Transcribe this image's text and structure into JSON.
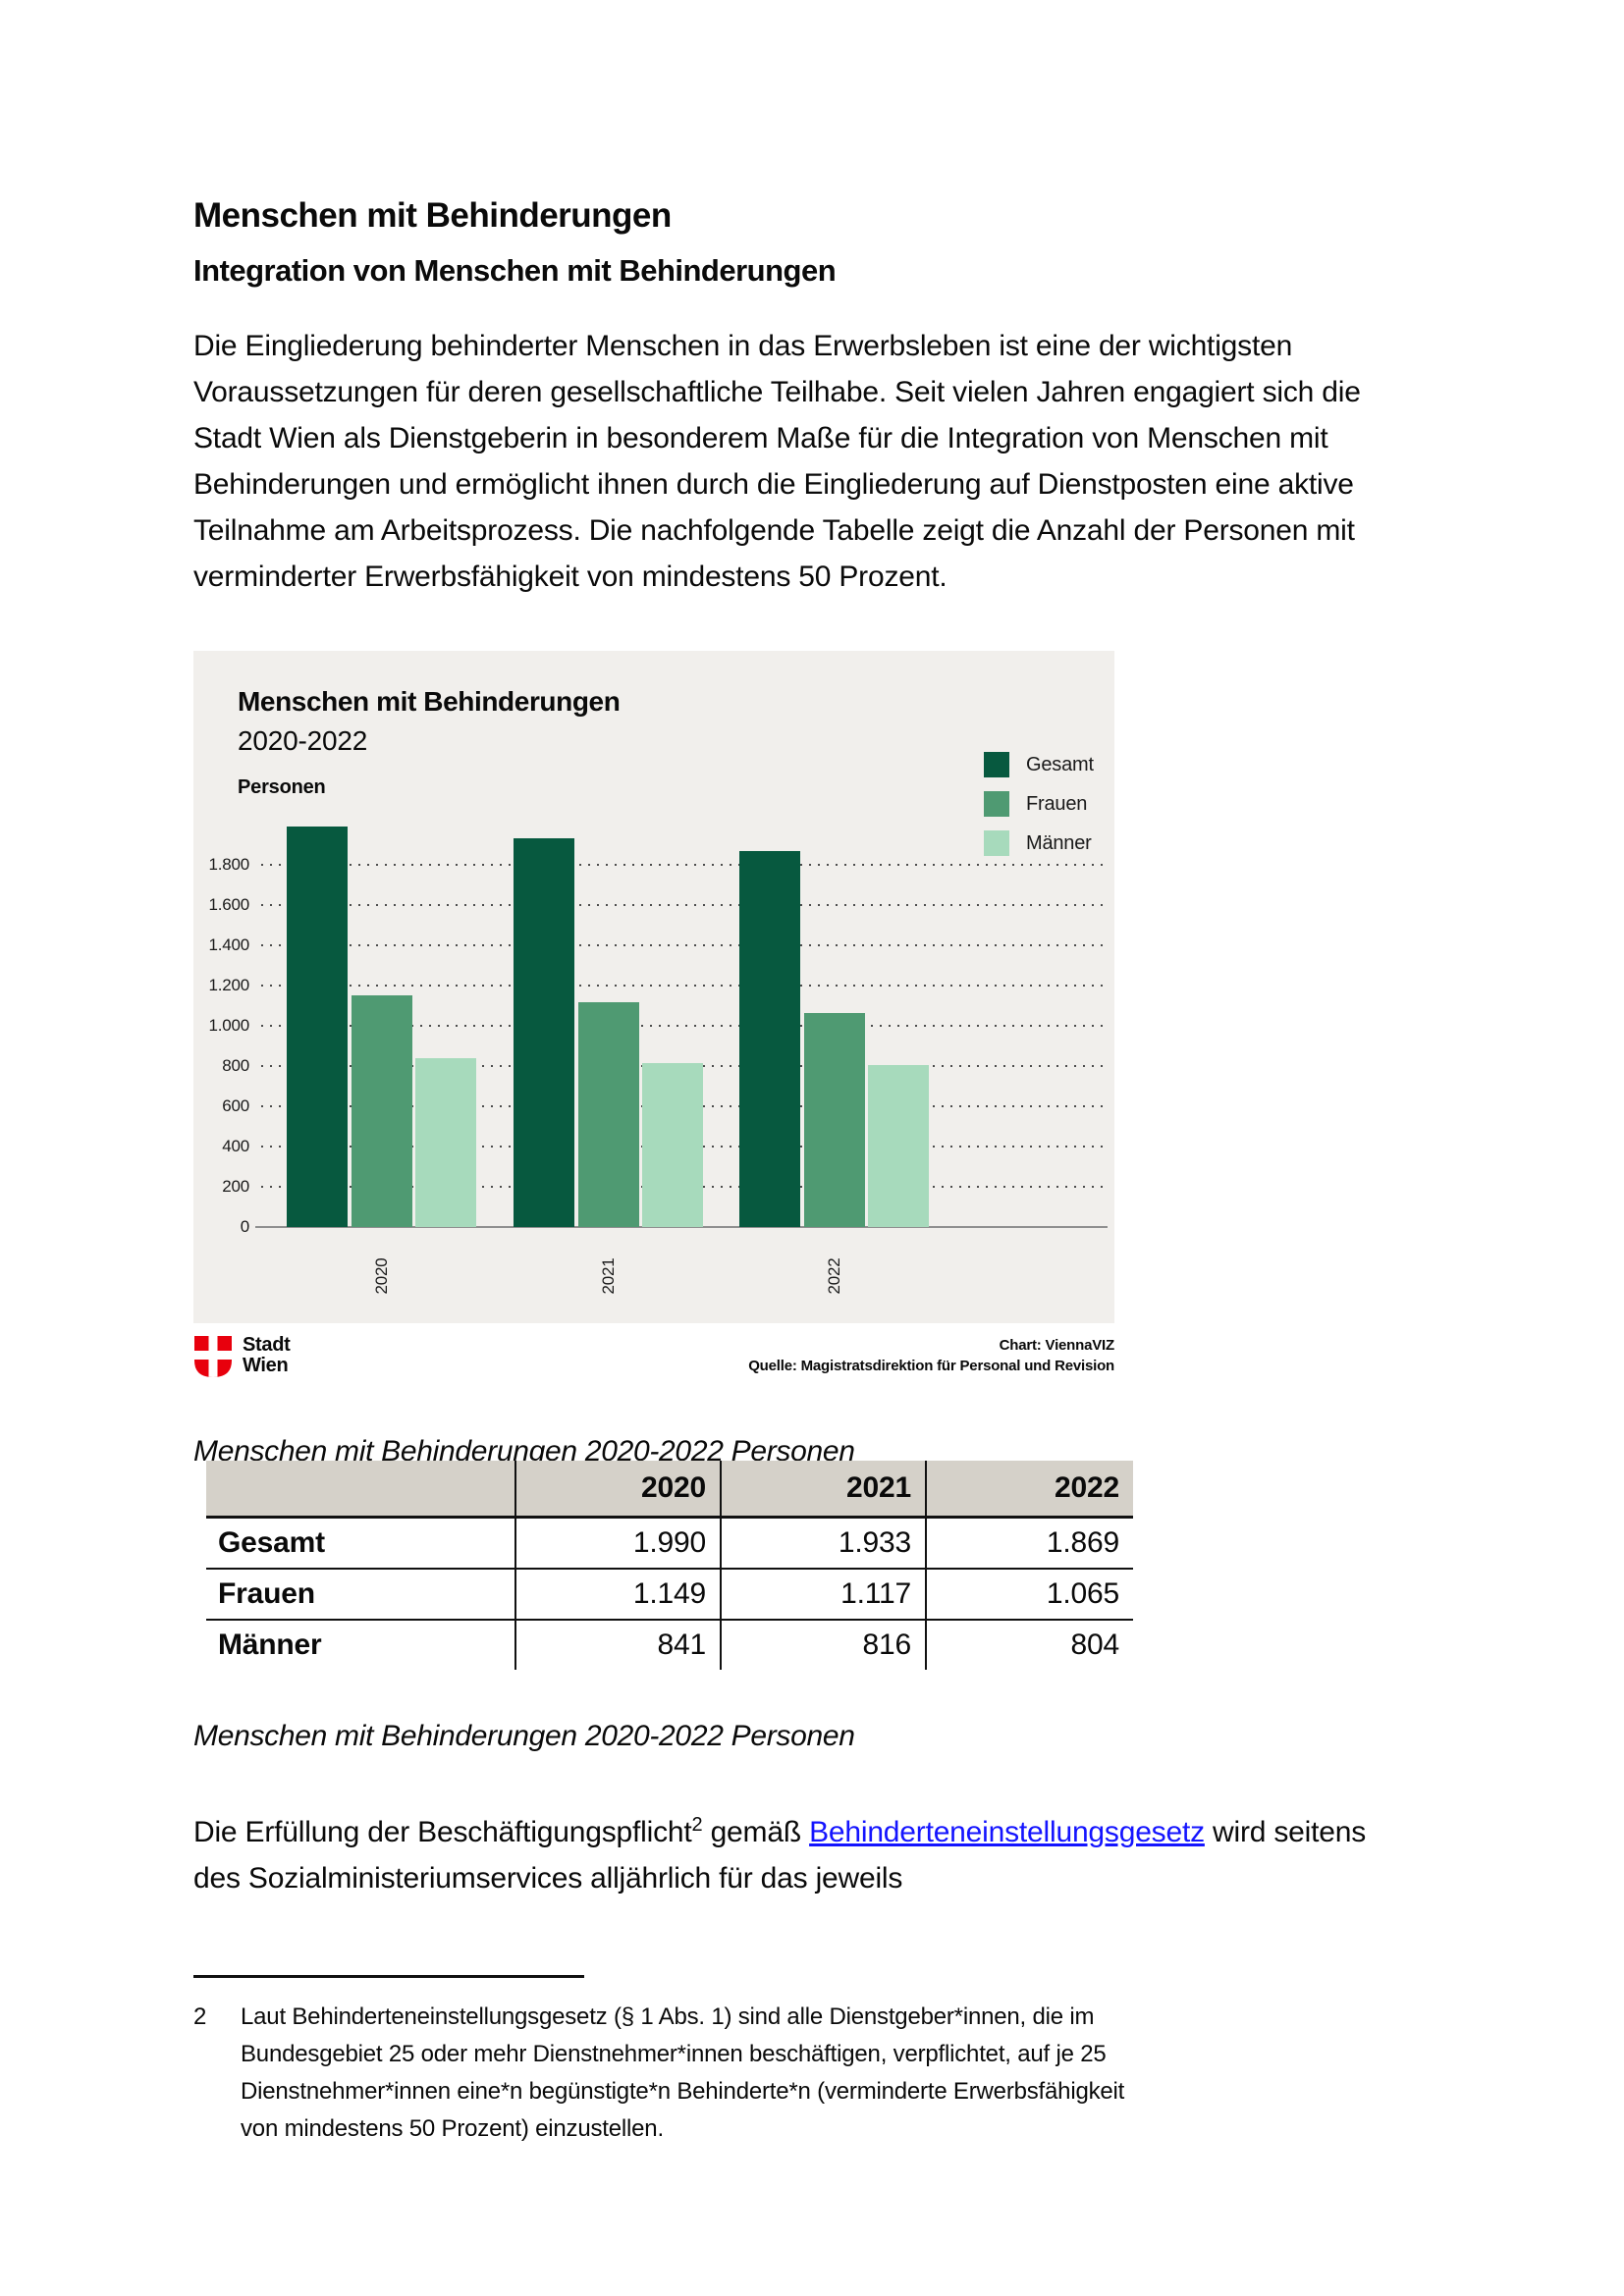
{
  "colors": {
    "chart_bg": "#f1efec",
    "table_header_bg": "#d5d1c9",
    "link_blue": "#1414ff",
    "brand_red": "#e8000d",
    "gesamt_green": "#07593f",
    "frauen_green": "#4f9a72",
    "maenner_green": "#a7dabc"
  },
  "document": {
    "title": "Menschen mit Behinderungen",
    "section_heading": "Integration von Menschen mit Behinderungen",
    "intro_paragraph": "Die Eingliederung behinderter Menschen in das Erwerbsleben ist eine der wichtigsten Voraussetzungen für deren gesellschaftliche Teilhabe. Seit vielen Jahren engagiert sich die Stadt Wien als Dienstgeberin in besonderem Maße für die Integration von Menschen mit Behinderungen und ermöglicht ihnen durch die Eingliederung auf Dienstposten eine aktive Teilnahme am Arbeitsprozess. Die nachfolgende Tabelle zeigt die Anzahl der Personen mit verminderter Erwerbsfähigkeit von mindestens 50 Prozent.",
    "caption_above_table": "Menschen mit Behinderungen 2020-2022 Personen",
    "caption_below_table": "Menschen mit Behinderungen 2020-2022 Personen",
    "paragraph2": {
      "text_before_sup": "Die Erfüllung der Beschäftigungspflicht",
      "footnote_ref": "2",
      "text_between": " gemäß ",
      "link_text": "Behinderteneinstellungsgesetz",
      "text_after": " wird seitens des Sozialministeriumservices alljährlich für das jeweils"
    },
    "footnote": {
      "marker": "2",
      "text": "Laut Behinderteneinstellungsgesetz (§ 1 Abs. 1) sind alle Dienstgeber*innen, die im Bundesgebiet 25 oder mehr Dienstnehmer*innen beschäftigen, verpflichtet, auf je 25 Dienstnehmer*innen eine*n begünstigte*n Behinderte*n (verminderte Erwerbsfähigkeit von mindestens 50 Prozent) einzustellen."
    }
  },
  "chart_data": {
    "type": "bar",
    "title": "Menschen mit Behinderungen",
    "subtitle": "2020-2022",
    "ylabel": "Personen",
    "categories": [
      "2020",
      "2021",
      "2022"
    ],
    "series": [
      {
        "name": "Gesamt",
        "color": "#07593f",
        "values": [
          1990,
          1933,
          1869
        ]
      },
      {
        "name": "Frauen",
        "color": "#4f9a72",
        "values": [
          1149,
          1117,
          1065
        ]
      },
      {
        "name": "Männer",
        "color": "#a7dabc",
        "values": [
          841,
          816,
          804
        ]
      }
    ],
    "ylim": [
      0,
      2000
    ],
    "yticks": [
      {
        "v": 0,
        "label": "0"
      },
      {
        "v": 200,
        "label": "200"
      },
      {
        "v": 400,
        "label": "400"
      },
      {
        "v": 600,
        "label": "600"
      },
      {
        "v": 800,
        "label": "800"
      },
      {
        "v": 1000,
        "label": "1.000"
      },
      {
        "v": 1200,
        "label": "1.200"
      },
      {
        "v": 1400,
        "label": "1.400"
      },
      {
        "v": 1600,
        "label": "1.600"
      },
      {
        "v": 1800,
        "label": "1.800"
      }
    ],
    "grid": "dotted-horizontal",
    "legend_position": "right",
    "brand": {
      "line1": "Stadt",
      "line2": "Wien"
    },
    "attribution": [
      "Chart: ViennaVIZ",
      "Quelle: Magistratsdirektion für Personal und Revision"
    ]
  },
  "table": {
    "columns": [
      "",
      "2020",
      "2021",
      "2022"
    ],
    "rows": [
      {
        "label": "Gesamt",
        "values": [
          "1.990",
          "1.933",
          "1.869"
        ]
      },
      {
        "label": "Frauen",
        "values": [
          "1.149",
          "1.117",
          "1.065"
        ]
      },
      {
        "label": "Männer",
        "values": [
          "841",
          "816",
          "804"
        ]
      }
    ]
  }
}
